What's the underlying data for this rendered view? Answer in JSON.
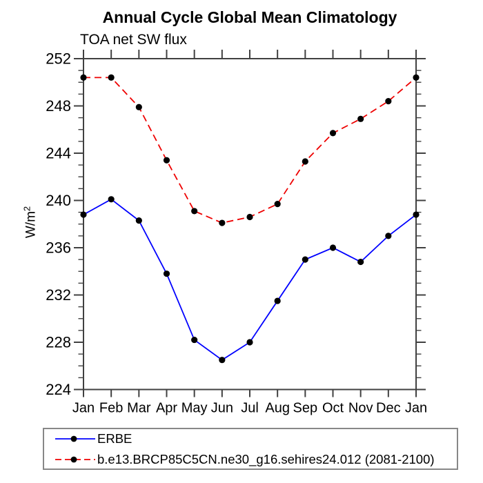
{
  "title": "Annual Cycle Global Mean Climatology",
  "subtitle": "TOA net SW flux",
  "y_axis": {
    "label": "W/m",
    "label_exponent": "2"
  },
  "chart_data": {
    "type": "line",
    "x_categories": [
      "Jan",
      "Feb",
      "Mar",
      "Apr",
      "May",
      "Jun",
      "Jul",
      "Aug",
      "Sep",
      "Oct",
      "Nov",
      "Dec",
      "Jan"
    ],
    "ylim": [
      224,
      252
    ],
    "ytick_major_step": 4,
    "ytick_minor_step": 1,
    "grid": false,
    "legend_position": "bottom-left-box",
    "axis_color": "#404040",
    "series": [
      {
        "name": "ERBE",
        "line_color": "#0000ff",
        "line_style": "solid",
        "marker": "filled-circle",
        "marker_color": "#000000",
        "values": [
          238.8,
          240.1,
          238.3,
          233.8,
          228.2,
          226.5,
          228.0,
          231.5,
          235.0,
          236.0,
          234.8,
          237.0,
          238.8
        ]
      },
      {
        "name": "b.e13.BRCP85C5CN.ne30_g16.sehires24.012 (2081-2100)",
        "line_color": "#ee0000",
        "line_style": "dashed",
        "marker": "filled-circle",
        "marker_color": "#000000",
        "values": [
          250.4,
          250.4,
          247.9,
          243.4,
          239.1,
          238.1,
          238.6,
          239.7,
          243.3,
          245.7,
          246.9,
          248.4,
          250.4
        ]
      }
    ]
  }
}
